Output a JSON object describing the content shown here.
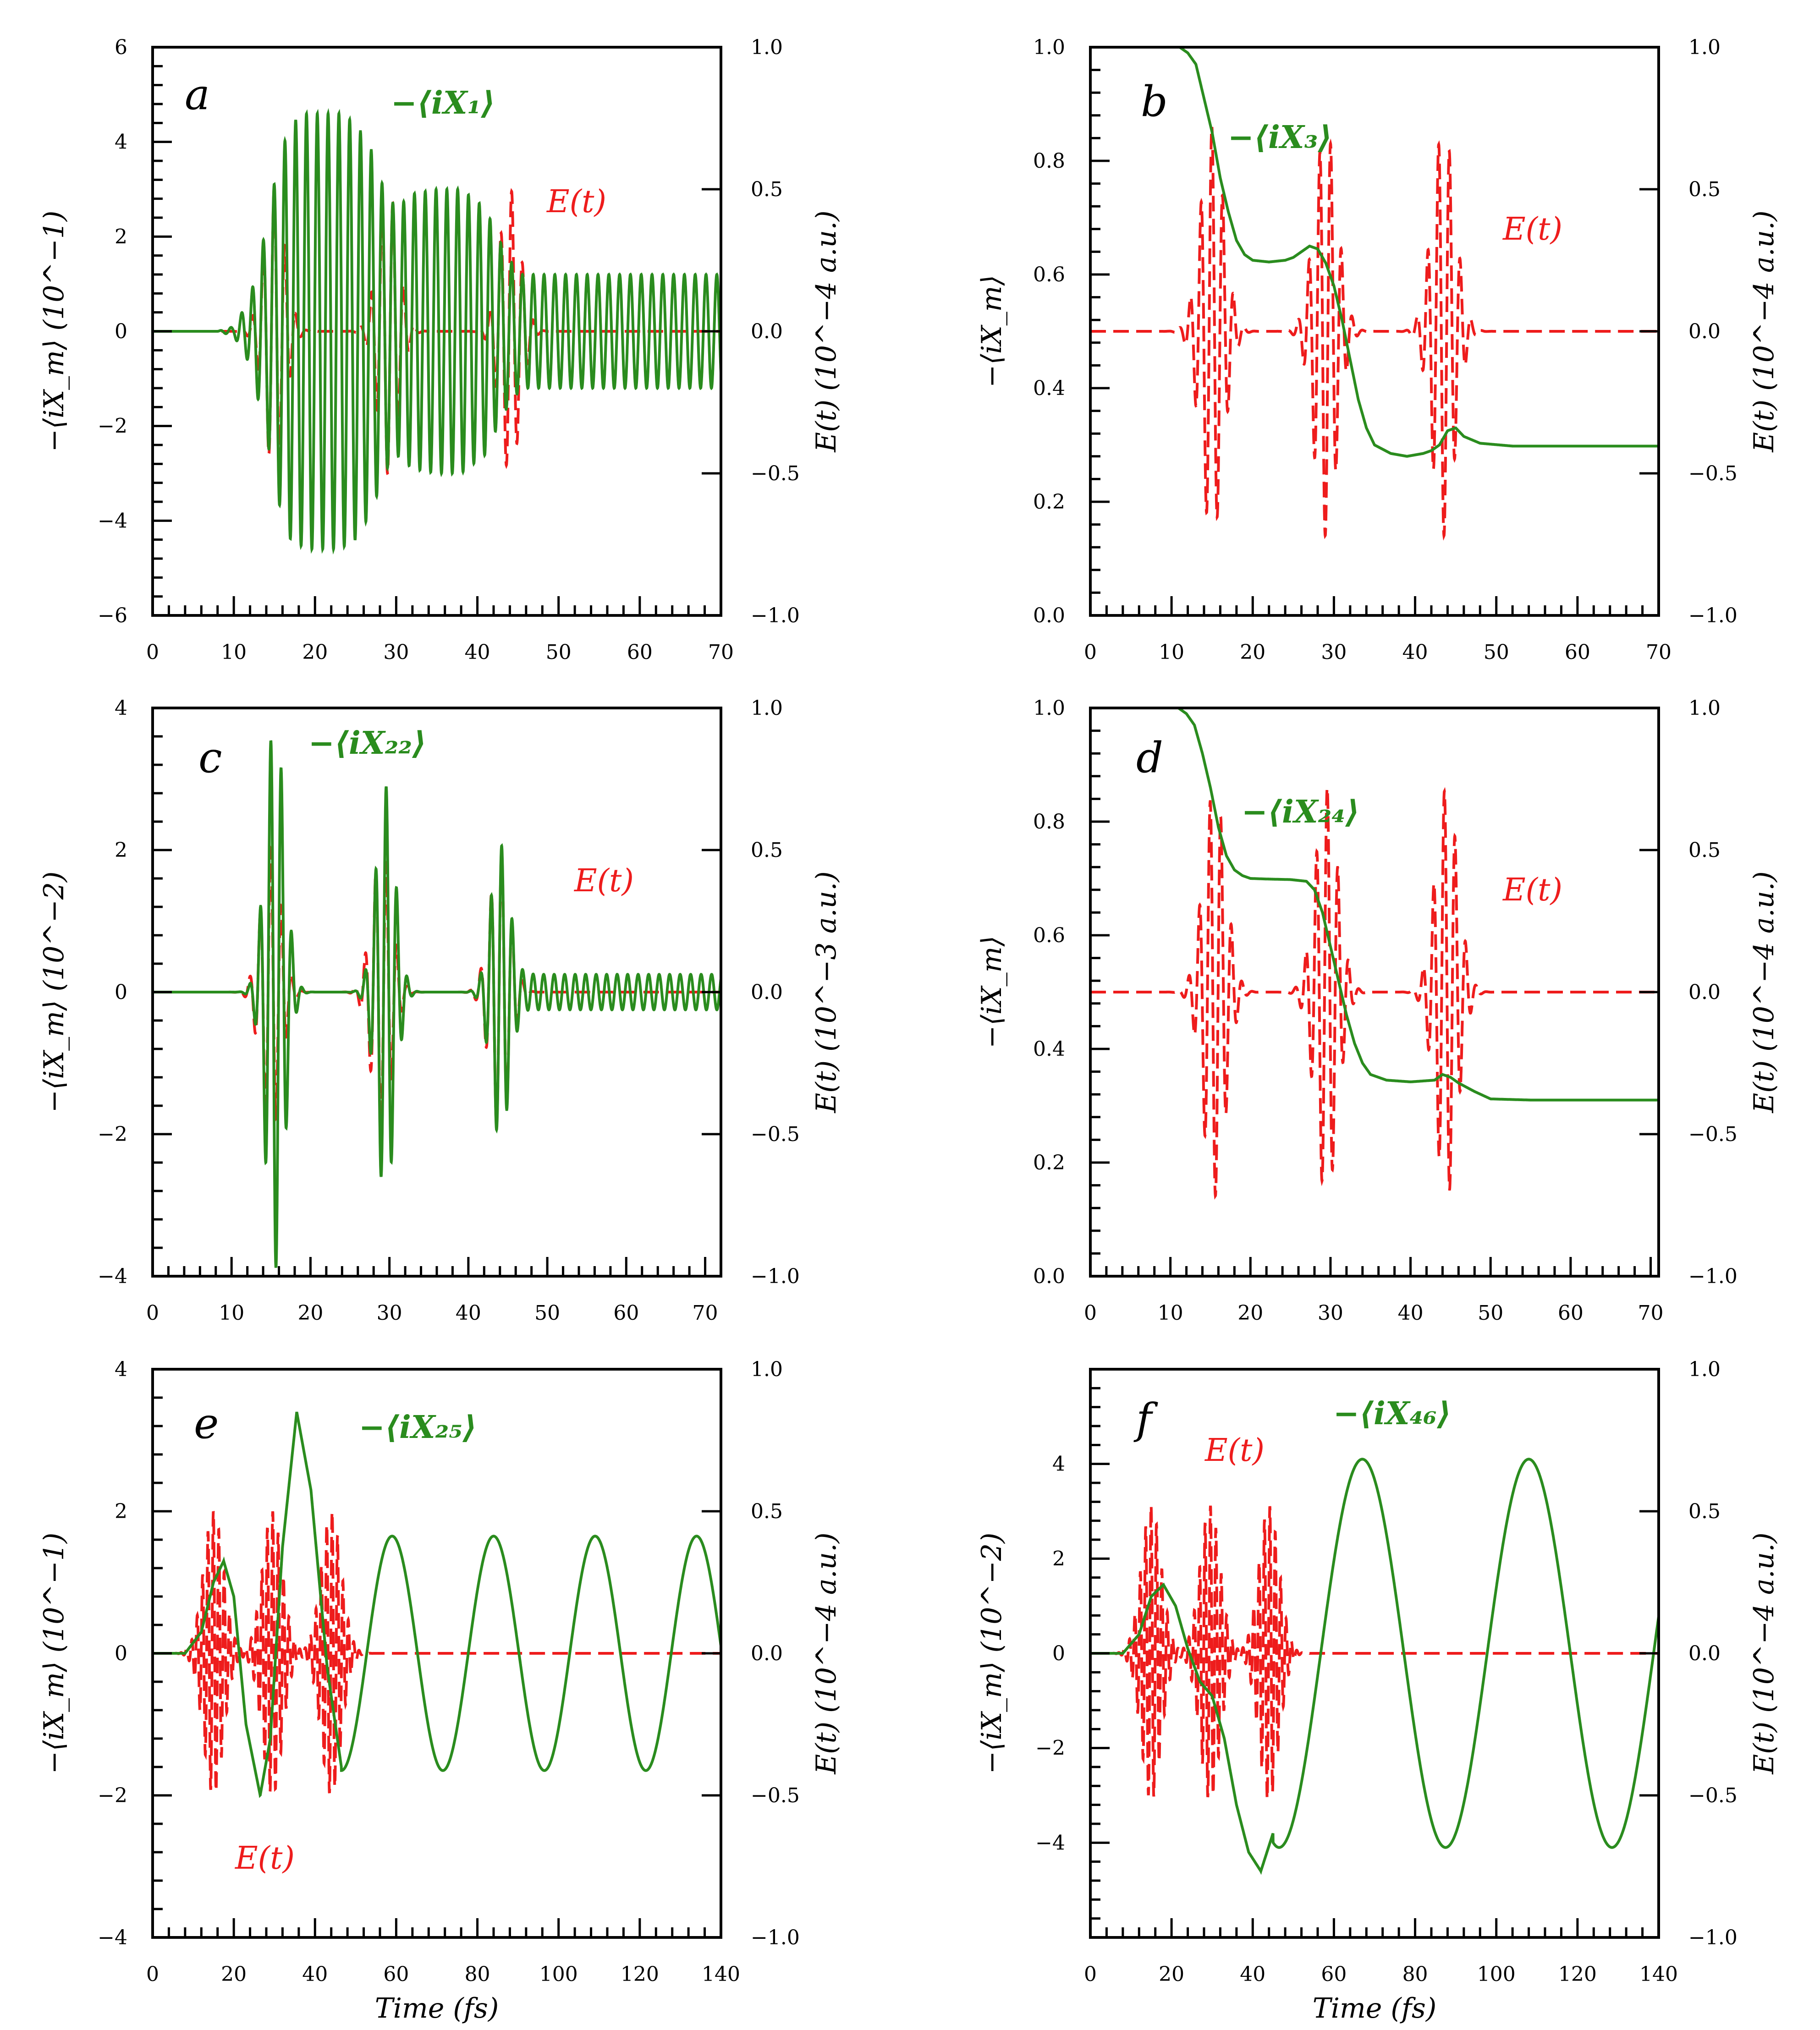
{
  "chart_data": [
    {
      "type": "line",
      "panel": "a",
      "xlim": [
        0,
        70
      ],
      "xticks": [
        "0",
        "10",
        "20",
        "30",
        "40",
        "50",
        "60",
        "70"
      ],
      "xlabel": "",
      "ylim": [
        -6,
        6
      ],
      "yticks": [
        "−6",
        "−4",
        "−2",
        "0",
        "2",
        "4",
        "6"
      ],
      "ylabel": "−⟨iX_m⟩ (10^−1)",
      "y2lim": [
        -1,
        1
      ],
      "y2ticks": [
        "−1.0",
        "−0.5",
        "0.0",
        "0.5",
        "1.0"
      ],
      "y2label": "E(t) (10^−4 a.u.)",
      "series": [
        {
          "name": "−⟨iX₁⟩",
          "color": "#2a8c1e",
          "style": "solid",
          "axis": "left",
          "x": [
            0,
            8,
            10,
            12,
            14,
            15.5,
            17,
            19,
            21,
            23,
            25,
            27,
            28.5,
            30,
            32,
            35,
            38,
            41,
            42.5,
            44,
            45.5,
            47,
            50,
            60,
            70
          ],
          "envelope": [
            0,
            0,
            0.1,
            0.7,
            2.2,
            3.6,
            4.4,
            4.6,
            4.6,
            4.6,
            4.4,
            3.8,
            3.0,
            2.6,
            2.9,
            3.0,
            3.0,
            2.6,
            2.0,
            1.5,
            1.2,
            1.2,
            1.2,
            1.2,
            1.2
          ],
          "period_fs": 1.33
        },
        {
          "name": "E(t)",
          "color": "#ee1c1c",
          "style": "dashed",
          "axis": "right",
          "pulses": [
            {
              "center": 15,
              "width": 1.8,
              "amp": 0.5
            },
            {
              "center": 29,
              "width": 1.8,
              "amp": 0.5
            },
            {
              "center": 44,
              "width": 1.8,
              "amp": 0.5
            }
          ],
          "period_fs": 1.33
        }
      ],
      "annotations": {
        "green_label": "−⟨iX₁⟩",
        "red_label": "E(t)",
        "letter": "a"
      }
    },
    {
      "type": "line",
      "panel": "b",
      "xlim": [
        0,
        70
      ],
      "xticks": [
        "0",
        "10",
        "20",
        "30",
        "40",
        "50",
        "60",
        "70"
      ],
      "xlabel": "",
      "ylim": [
        0,
        1
      ],
      "yticks": [
        "0.0",
        "0.2",
        "0.4",
        "0.6",
        "0.8",
        "1.0"
      ],
      "ylabel": "−⟨iX_m⟩",
      "y2lim": [
        -1,
        1
      ],
      "y2ticks": [
        "−1.0",
        "−0.5",
        "0.0",
        "0.5",
        "1.0"
      ],
      "y2label": "E(t) (10^−4 a.u.)",
      "series": [
        {
          "name": "−⟨iX₃⟩",
          "color": "#2a8c1e",
          "style": "solid",
          "axis": "left",
          "x": [
            0,
            11,
            12,
            13,
            14,
            15,
            16,
            17,
            18,
            19,
            20,
            22,
            24,
            25,
            26,
            27,
            28,
            29,
            30,
            31,
            32,
            33,
            34,
            35,
            37,
            39,
            41,
            42,
            43,
            44,
            45,
            46,
            48,
            52,
            60,
            70
          ],
          "y": [
            1.0,
            1.0,
            0.99,
            0.97,
            0.91,
            0.85,
            0.77,
            0.71,
            0.66,
            0.635,
            0.625,
            0.622,
            0.625,
            0.63,
            0.64,
            0.65,
            0.645,
            0.62,
            0.58,
            0.52,
            0.45,
            0.38,
            0.33,
            0.3,
            0.285,
            0.28,
            0.285,
            0.29,
            0.3,
            0.325,
            0.33,
            0.315,
            0.303,
            0.298,
            0.298,
            0.298
          ]
        },
        {
          "name": "E(t)",
          "color": "#ee1c1c",
          "style": "dashed",
          "axis": "right",
          "pulses": [
            {
              "center": 15,
              "width": 2.0,
              "amp": 0.72
            },
            {
              "center": 29,
              "width": 2.0,
              "amp": 0.72
            },
            {
              "center": 43.5,
              "width": 2.0,
              "amp": 0.72
            }
          ],
          "period_fs": 1.33
        }
      ],
      "annotations": {
        "green_label": "−⟨iX₃⟩",
        "red_label": "E(t)",
        "letter": "b"
      }
    },
    {
      "type": "line",
      "panel": "c",
      "xlim": [
        0,
        72
      ],
      "xticks": [
        "0",
        "10",
        "20",
        "30",
        "40",
        "50",
        "60",
        "70"
      ],
      "xlabel": "",
      "ylim": [
        -4,
        4
      ],
      "yticks": [
        "−4",
        "−2",
        "0",
        "2",
        "4"
      ],
      "ylabel": "−⟨iX_m⟩ (10^−2)",
      "y2lim": [
        -1,
        1
      ],
      "y2ticks": [
        "−1.0",
        "−0.5",
        "0.0",
        "0.5",
        "1.0"
      ],
      "y2label": "E(t) (10^−3 a.u.)",
      "series": [
        {
          "name": "−⟨iX₂₂⟩",
          "color": "#2a8c1e",
          "style": "solid",
          "axis": "left",
          "pulses": [
            {
              "center": 15.5,
              "width": 1.7,
              "amp": 3.9
            },
            {
              "center": 29.5,
              "width": 1.7,
              "amp": 2.9
            },
            {
              "center": 44,
              "width": 1.7,
              "amp": 2.0
            }
          ],
          "baseline_after_fs": 48,
          "baseline_amp": 0.25,
          "period_fs": 1.33
        },
        {
          "name": "E(t)",
          "color": "#ee1c1c",
          "style": "dashed",
          "axis": "right",
          "pulses": [
            {
              "center": 15,
              "width": 1.8,
              "amp": 0.5
            },
            {
              "center": 29,
              "width": 1.8,
              "amp": 0.5
            },
            {
              "center": 44,
              "width": 1.8,
              "amp": 0.5
            }
          ],
          "period_fs": 1.33
        }
      ],
      "annotations": {
        "green_label": "−⟨iX₂₂⟩",
        "red_label": "E(t)",
        "letter": "c"
      }
    },
    {
      "type": "line",
      "panel": "d",
      "xlim": [
        0,
        71
      ],
      "xticks": [
        "0",
        "10",
        "20",
        "30",
        "40",
        "50",
        "60",
        "70"
      ],
      "xlabel": "",
      "ylim": [
        0,
        1
      ],
      "yticks": [
        "0.0",
        "0.2",
        "0.4",
        "0.6",
        "0.8",
        "1.0"
      ],
      "ylabel": "−⟨iX_m⟩",
      "y2lim": [
        -1,
        1
      ],
      "y2ticks": [
        "−1.0",
        "−0.5",
        "0.0",
        "0.5",
        "1.0"
      ],
      "y2label": "E(t) (10^−4 a.u.)",
      "series": [
        {
          "name": "−⟨iX₂₄⟩",
          "color": "#2a8c1e",
          "style": "solid",
          "axis": "left",
          "x": [
            0,
            11,
            12,
            13,
            14,
            15,
            16,
            17,
            18,
            19,
            20,
            22,
            25,
            27,
            28,
            29,
            30,
            31,
            32,
            33,
            34,
            35,
            37,
            40,
            43,
            44,
            45,
            46,
            48,
            50,
            55,
            60,
            71
          ],
          "y": [
            1.0,
            1.0,
            0.99,
            0.97,
            0.92,
            0.86,
            0.79,
            0.74,
            0.715,
            0.705,
            0.7,
            0.699,
            0.698,
            0.695,
            0.68,
            0.64,
            0.58,
            0.52,
            0.46,
            0.41,
            0.375,
            0.355,
            0.345,
            0.342,
            0.345,
            0.355,
            0.35,
            0.34,
            0.325,
            0.312,
            0.31,
            0.31,
            0.31
          ]
        },
        {
          "name": "E(t)",
          "color": "#ee1c1c",
          "style": "dashed",
          "axis": "right",
          "pulses": [
            {
              "center": 15.5,
              "width": 2.0,
              "amp": 0.72
            },
            {
              "center": 29.5,
              "width": 2.0,
              "amp": 0.72
            },
            {
              "center": 44.5,
              "width": 2.0,
              "amp": 0.72
            }
          ],
          "period_fs": 1.33
        }
      ],
      "annotations": {
        "green_label": "−⟨iX₂₄⟩",
        "red_label": "E(t)",
        "letter": "d"
      }
    },
    {
      "type": "line",
      "panel": "e",
      "xlim": [
        0,
        140
      ],
      "xticks": [
        "0",
        "20",
        "40",
        "60",
        "80",
        "100",
        "120",
        "140"
      ],
      "xlabel": "Time (fs)",
      "ylim": [
        -4,
        4
      ],
      "yticks": [
        "−4",
        "−2",
        "0",
        "2",
        "4"
      ],
      "ylabel": "−⟨iX_m⟩ (10^−1)",
      "y2lim": [
        -1,
        1
      ],
      "y2ticks": [
        "−1.0",
        "−0.5",
        "0.0",
        "0.5",
        "1.0"
      ],
      "y2label": "E(t) (10^−4 a.u.)",
      "series": [
        {
          "name": "−⟨iX₂₅⟩",
          "color": "#2a8c1e",
          "style": "solid",
          "axis": "left",
          "x": [
            0,
            8,
            12,
            15,
            17.5,
            20,
            23,
            26.5,
            29,
            32,
            35.5,
            39,
            43,
            46.5,
            52
          ],
          "y": [
            0,
            0,
            0.3,
            1.0,
            1.3,
            0.8,
            -1.0,
            -2.0,
            -1.2,
            1.5,
            3.4,
            2.3,
            -0.2,
            -1.6,
            -0.4
          ],
          "tail": {
            "start_fs": 46.5,
            "amp": 1.65,
            "period_fs": 25,
            "phase_peak_fs": 59
          }
        },
        {
          "name": "E(t)",
          "color": "#ee1c1c",
          "style": "dashed",
          "axis": "right",
          "pulses": [
            {
              "center": 15,
              "width": 3.5,
              "amp": 0.5
            },
            {
              "center": 29.5,
              "width": 3.5,
              "amp": 0.5
            },
            {
              "center": 44,
              "width": 3.5,
              "amp": 0.5
            }
          ],
          "period_fs": 1.33
        }
      ],
      "annotations": {
        "green_label": "−⟨iX₂₅⟩",
        "red_label": "E(t)",
        "letter": "e"
      }
    },
    {
      "type": "line",
      "panel": "f",
      "xlim": [
        0,
        140
      ],
      "xticks": [
        "0",
        "20",
        "40",
        "60",
        "80",
        "100",
        "120",
        "140"
      ],
      "xlabel": "Time (fs)",
      "ylim": [
        -6,
        6
      ],
      "yticks": [
        "−4",
        "−2",
        "0",
        "2",
        "4"
      ],
      "ylabel": "−⟨iX_m⟩ (10^−2)",
      "y2lim": [
        -1,
        1
      ],
      "y2ticks": [
        "−1.0",
        "−0.5",
        "0.0",
        "0.5",
        "1.0"
      ],
      "y2label": "E(t) (10^−4 a.u.)",
      "series": [
        {
          "name": "−⟨iX₄₆⟩",
          "color": "#2a8c1e",
          "style": "solid",
          "axis": "left",
          "x": [
            0,
            8,
            12,
            15,
            18,
            21,
            24,
            27,
            30,
            33,
            36,
            39,
            42,
            45
          ],
          "y": [
            0,
            0,
            0.4,
            1.2,
            1.45,
            1.0,
            0.1,
            -0.6,
            -0.9,
            -1.8,
            -3.2,
            -4.2,
            -4.6,
            -3.8
          ],
          "tail": {
            "start_fs": 45,
            "amp": 4.1,
            "period_fs": 41,
            "phase_peak_fs": 67
          }
        },
        {
          "name": "E(t)",
          "color": "#ee1c1c",
          "style": "dashed",
          "axis": "right",
          "pulses": [
            {
              "center": 15,
              "width": 3.5,
              "amp": 0.52
            },
            {
              "center": 29.5,
              "width": 3.5,
              "amp": 0.52
            },
            {
              "center": 44,
              "width": 3.5,
              "amp": 0.52
            }
          ],
          "period_fs": 1.33
        }
      ],
      "annotations": {
        "green_label": "−⟨iX₄₆⟩",
        "red_label": "E(t)",
        "letter": "f"
      }
    }
  ]
}
